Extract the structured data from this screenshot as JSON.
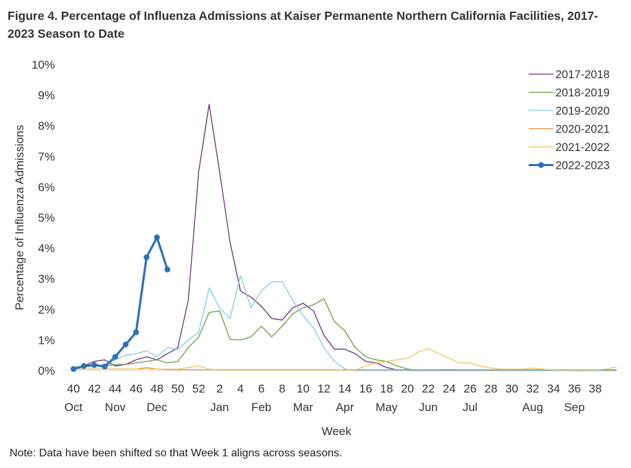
{
  "title": "Figure 4. Percentage of Influenza Admissions at Kaiser Permanente Northern California Facilities, 2017-2023 Season to Date",
  "note": "Note: Data have been shifted so that Week 1 aligns across seasons.",
  "chart_data": {
    "type": "line",
    "title": "Figure 4. Percentage of Influenza Admissions at Kaiser Permanente Northern California Facilities, 2017-2023 Season to Date",
    "xlabel": "Week",
    "ylabel": "Percentage of Influenza Admissions",
    "ylim": [
      0,
      10
    ],
    "yticks": [
      "0%",
      "1%",
      "2%",
      "3%",
      "4%",
      "5%",
      "6%",
      "7%",
      "8%",
      "9%",
      "10%"
    ],
    "x_tick_weeks": [
      "40",
      "42",
      "44",
      "46",
      "48",
      "50",
      "52",
      "2",
      "4",
      "6",
      "8",
      "10",
      "12",
      "14",
      "16",
      "18",
      "20",
      "22",
      "24",
      "26",
      "28",
      "30",
      "32",
      "34",
      "36",
      "38"
    ],
    "months": [
      {
        "label": "Oct",
        "index": 0
      },
      {
        "label": "Nov",
        "index": 4
      },
      {
        "label": "Dec",
        "index": 8
      },
      {
        "label": "Jan",
        "index": 14
      },
      {
        "label": "Feb",
        "index": 18
      },
      {
        "label": "Mar",
        "index": 22
      },
      {
        "label": "Apr",
        "index": 26
      },
      {
        "label": "May",
        "index": 30
      },
      {
        "label": "Jun",
        "index": 34
      },
      {
        "label": "Jul",
        "index": 38
      },
      {
        "label": "Aug",
        "index": 44
      },
      {
        "label": "Sep",
        "index": 48
      }
    ],
    "legend_position": "top-right",
    "series": [
      {
        "name": "2017-2018",
        "color": "#6b2c78",
        "width": 1.3,
        "markers": false,
        "values": [
          0.1,
          0.15,
          0.3,
          0.35,
          0.15,
          0.2,
          0.35,
          0.45,
          0.35,
          0.55,
          0.75,
          2.3,
          6.5,
          8.7,
          6.5,
          4.2,
          2.6,
          2.4,
          2.1,
          1.7,
          1.65,
          2.05,
          2.2,
          1.95,
          1.15,
          0.7,
          0.7,
          0.55,
          0.3,
          0.25,
          0.1,
          0.02,
          0,
          0,
          0,
          0.02,
          0.03,
          0.02,
          0.02,
          0.02,
          0,
          0,
          0,
          0.02,
          0,
          0,
          0,
          0.02,
          0,
          0,
          0.02,
          0.02,
          0.03
        ]
      },
      {
        "name": "2018-2019",
        "color": "#6a9a3e",
        "width": 1.3,
        "markers": false,
        "values": [
          0.1,
          0.12,
          0.15,
          0.15,
          0.2,
          0.2,
          0.25,
          0.3,
          0.35,
          0.25,
          0.3,
          0.75,
          1.1,
          1.9,
          1.95,
          1.02,
          1.0,
          1.1,
          1.45,
          1.1,
          1.45,
          1.85,
          2.05,
          2.15,
          2.35,
          1.6,
          1.3,
          0.75,
          0.45,
          0.35,
          0.3,
          0.15,
          0.05,
          0,
          0,
          0,
          0,
          0,
          0,
          0,
          0,
          0,
          0,
          0,
          0,
          0,
          0,
          0,
          0,
          0,
          0,
          0,
          0
        ]
      },
      {
        "name": "2019-2020",
        "color": "#7ec8e8",
        "width": 1.3,
        "markers": false,
        "values": [
          0.1,
          0.12,
          0.15,
          0.2,
          0.35,
          0.5,
          0.55,
          0.65,
          0.45,
          0.75,
          0.7,
          1.0,
          1.25,
          2.7,
          2.05,
          1.7,
          3.1,
          2.05,
          2.6,
          2.9,
          2.9,
          2.3,
          1.8,
          1.4,
          0.75,
          0.3,
          0.05,
          0,
          0,
          0,
          0,
          0,
          0,
          0,
          0,
          0,
          0,
          0,
          0,
          0,
          0,
          0,
          0,
          0,
          0,
          0,
          0,
          0,
          0,
          0,
          0,
          0,
          0
        ]
      },
      {
        "name": "2020-2021",
        "color": "#ef8a2e",
        "width": 1.2,
        "markers": false,
        "values": [
          0.05,
          0.05,
          0.05,
          0.05,
          0.05,
          0.05,
          0.05,
          0.1,
          0.05,
          0.03,
          0.03,
          0.03,
          0.03,
          0.03,
          0.03,
          0.03,
          0.03,
          0.03,
          0.03,
          0.03,
          0.03,
          0.03,
          0.03,
          0.03,
          0.03,
          0.03,
          0.03,
          0.03,
          0.03,
          0.03,
          0.03,
          0.03,
          0.03,
          0.03,
          0.03,
          0.03,
          0.03,
          0.03,
          0.03,
          0.03,
          0.03,
          0.03,
          0.03,
          0.03,
          0.03,
          0.03,
          0.03,
          0.03,
          0.03,
          0.03,
          0.03,
          0.03,
          0.03
        ]
      },
      {
        "name": "2021-2022",
        "color": "#f4c04a",
        "width": 1.2,
        "markers": false,
        "values": [
          0.05,
          0.05,
          0.05,
          0.05,
          0.05,
          0.05,
          0.05,
          0.05,
          0.05,
          0.05,
          0.05,
          0.1,
          0.15,
          0.05,
          0.02,
          0.02,
          0.02,
          0.02,
          0.02,
          0.02,
          0.02,
          0.02,
          0.02,
          0.02,
          0.02,
          0.02,
          0.02,
          0.02,
          0.15,
          0.25,
          0.3,
          0.35,
          0.4,
          0.6,
          0.72,
          0.55,
          0.4,
          0.25,
          0.25,
          0.15,
          0.08,
          0.05,
          0.05,
          0.05,
          0.08,
          0.05,
          0.02,
          0.02,
          0.02,
          0.02,
          0.02,
          0.05,
          0.12
        ]
      },
      {
        "name": "2022-2023",
        "color": "#2b72b8",
        "width": 3.2,
        "markers": true,
        "values": [
          0.05,
          0.15,
          0.18,
          0.13,
          0.45,
          0.85,
          1.25,
          3.7,
          4.35,
          3.3
        ]
      }
    ]
  }
}
